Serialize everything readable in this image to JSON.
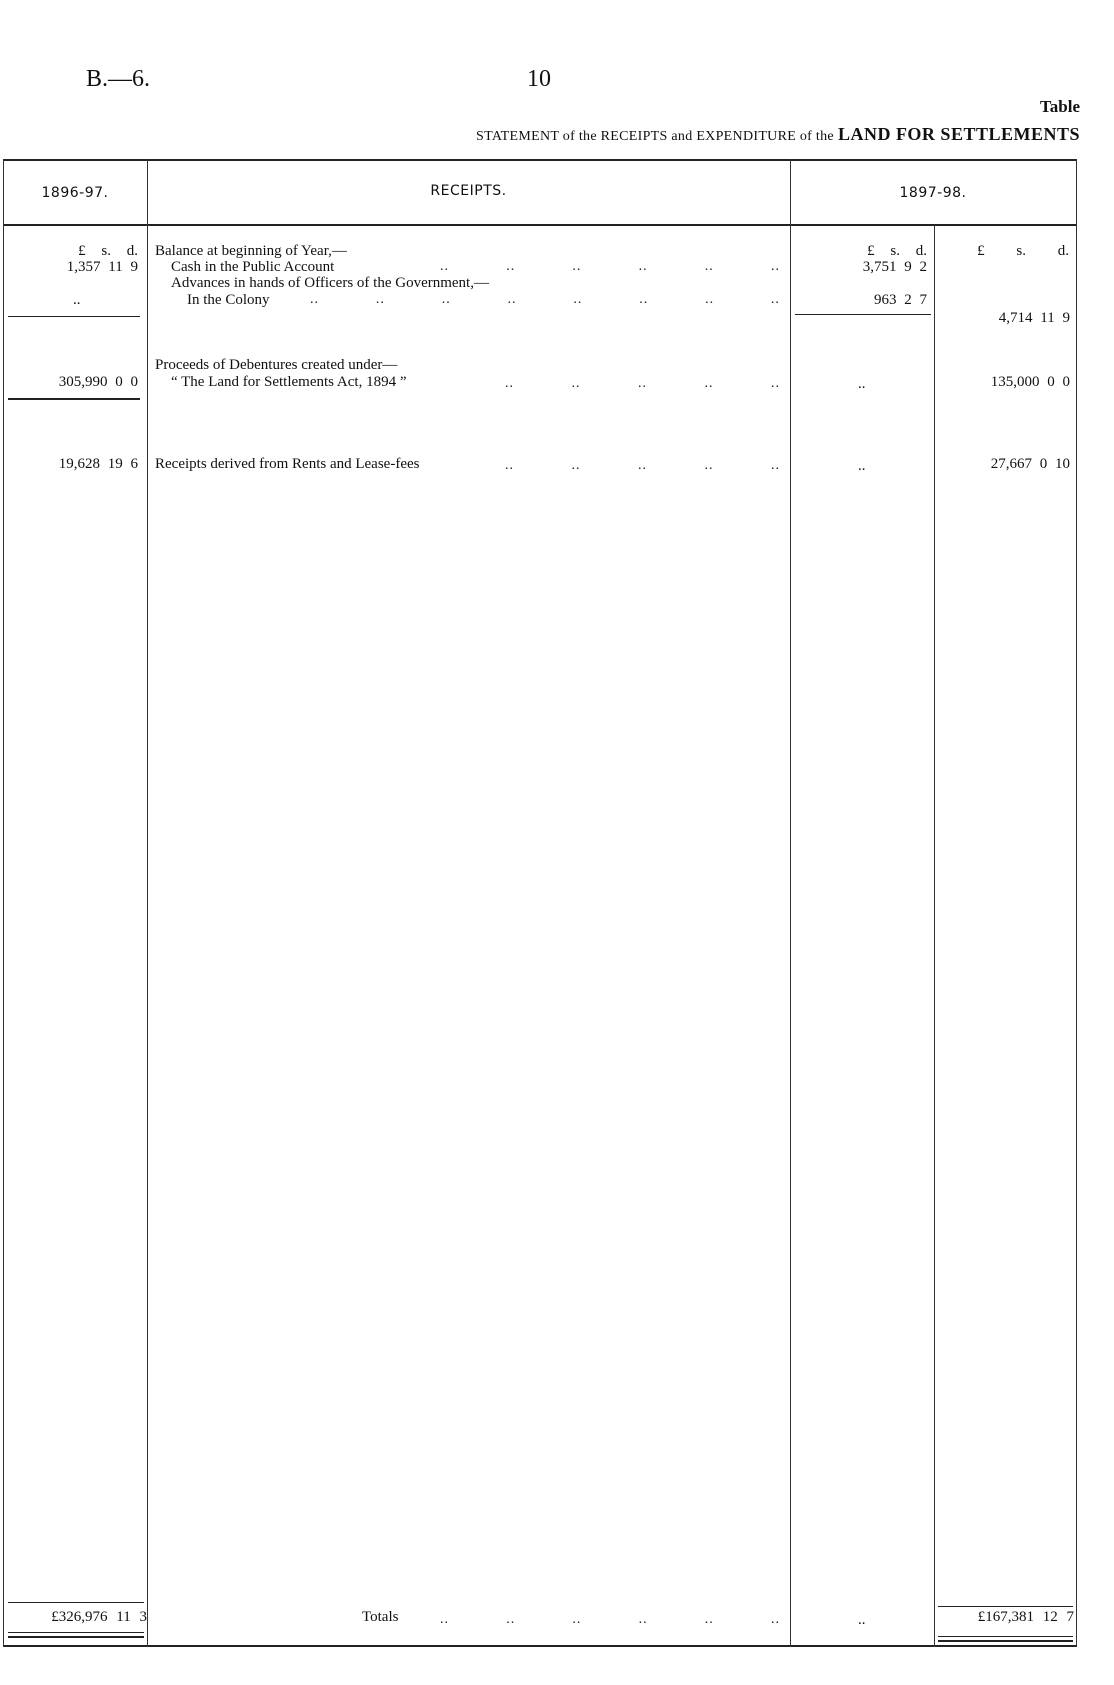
{
  "page": {
    "reference": "B.—6.",
    "number": "10",
    "table_label": "Table",
    "title_prefix": "STATEMENT of the RECEIPTS and EXPENDITURE of the",
    "title_bold": "LAND FOR SETTLEMENTS"
  },
  "table": {
    "headers": {
      "prev_year": "1896-97.",
      "receipts": "RECEIPTS.",
      "curr_year": "1897-98."
    },
    "currency_header": "£ s. d.",
    "rows": {
      "balance_heading": "Balance at beginning of Year,—",
      "cash_label": "Cash in the Public Account",
      "advances_heading": "Advances in hands of Officers of the Government,—",
      "colony_label": "In the Colony",
      "debentures_heading": "Proceeds of Debentures created under—",
      "debentures_act": "“ The Land for Settlements Act, 1894 ”",
      "rents_label": "Receipts derived from Rents and Lease-fees",
      "totals_label": "Totals"
    },
    "values": {
      "prev_cash": "1,357 11 9",
      "prev_colony": "..",
      "curr_cash": "3,751 9 2",
      "curr_colony": "963 2 7",
      "curr_balance_total": "4,714 11 9",
      "prev_debentures": "305,990 0 0",
      "curr_debentures_sub": "..",
      "curr_debentures": "135,000 0 0",
      "prev_rents": "19,628 19 6",
      "curr_rents_sub": "..",
      "curr_rents": "27,667 0 10",
      "prev_total": "£326,976 11 3",
      "curr_total_sub": "..",
      "curr_total": "£167,381 12 7"
    },
    "leader": ".."
  }
}
